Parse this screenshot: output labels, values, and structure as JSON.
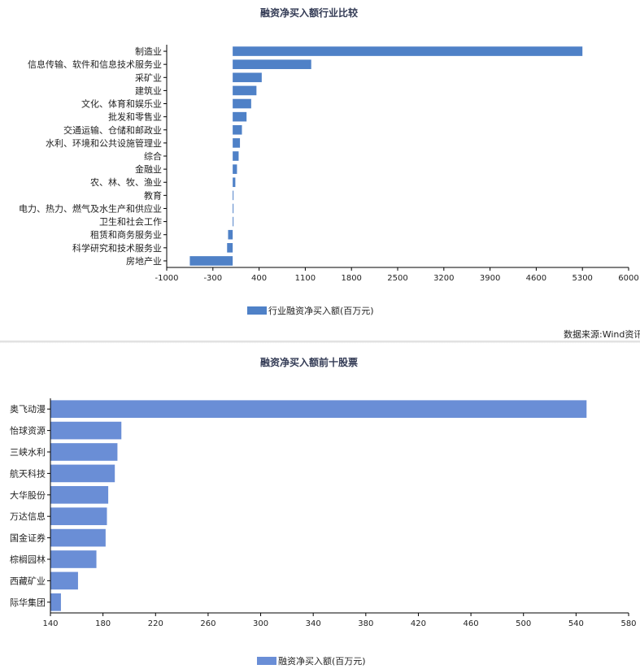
{
  "chart_data": [
    {
      "type": "bar",
      "orientation": "horizontal",
      "title": "融资净买入额行业比较",
      "categories": [
        "制造业",
        "信息传输、软件和信息技术服务业",
        "采矿业",
        "建筑业",
        "文化、体育和娱乐业",
        "批发和零售业",
        "交通运输、仓储和邮政业",
        "水利、环境和公共设施管理业",
        "综合",
        "金融业",
        "农、林、牧、渔业",
        "教育",
        "电力、热力、燃气及水生产和供应业",
        "卫生和社会工作",
        "租赁和商务服务业",
        "科学研究和技术服务业",
        "房地产业"
      ],
      "series": [
        {
          "name": "行业融资净买入额(百万元)",
          "values": [
            5300,
            1190,
            440,
            360,
            280,
            210,
            140,
            110,
            90,
            65,
            40,
            10,
            5,
            5,
            -70,
            -85,
            -650
          ]
        }
      ],
      "xlim": [
        -1000,
        6000
      ],
      "xticks": [
        -1000,
        -300,
        400,
        1100,
        1800,
        2500,
        3200,
        3900,
        4600,
        5300,
        6000
      ],
      "color": "#4f81c7",
      "legend_position": "bottom",
      "source": "数据来源:Wind资讯"
    },
    {
      "type": "bar",
      "orientation": "horizontal",
      "title": "融资净买入额前十股票",
      "categories": [
        "奥飞动漫",
        "怡球资源",
        "三峡水利",
        "航天科技",
        "大华股份",
        "万达信息",
        "国金证券",
        "棕榈园林",
        "西藏矿业",
        "际华集团"
      ],
      "series": [
        {
          "name": "融资净买入额(百万元)",
          "values": [
            548,
            194,
            191,
            189,
            184,
            183,
            182,
            175,
            161,
            148
          ]
        }
      ],
      "xlim": [
        140,
        580
      ],
      "xticks": [
        140,
        180,
        220,
        260,
        300,
        340,
        380,
        420,
        460,
        500,
        540,
        580
      ],
      "color": "#6a8ed6",
      "legend_position": "bottom"
    }
  ]
}
